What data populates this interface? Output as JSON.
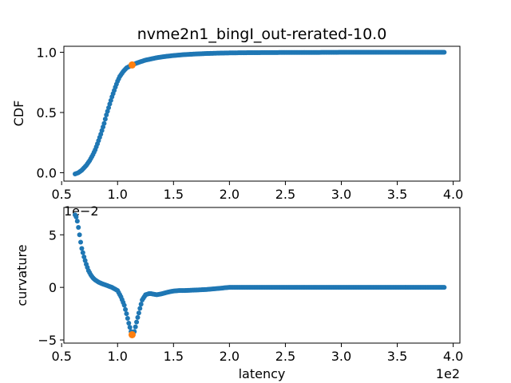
{
  "chart_data": [
    {
      "type": "scatter",
      "title": "nvme2n1_bingI_out-rerated-10.0",
      "xlabel": "",
      "ylabel": "CDF",
      "xlim": [
        0.52,
        4.06
      ],
      "ylim": [
        -0.07,
        1.05
      ],
      "xticks": [
        0.5,
        1.0,
        1.5,
        2.0,
        2.5,
        3.0,
        3.5,
        4.0
      ],
      "xtick_labels": [
        "0.5",
        "1.0",
        "1.5",
        "2.0",
        "2.5",
        "3.0",
        "3.5",
        "4.0"
      ],
      "yticks": [
        0.0,
        0.5,
        1.0
      ],
      "ytick_labels": [
        "0.0",
        "0.5",
        "1.0"
      ],
      "series": [
        {
          "color": "#1f77b4",
          "x": [
            0.62,
            0.65,
            0.68,
            0.7,
            0.72,
            0.75,
            0.78,
            0.8,
            0.82,
            0.85,
            0.88,
            0.9,
            0.92,
            0.95,
            0.98,
            1.0,
            1.02,
            1.05,
            1.08,
            1.1,
            1.13,
            1.17,
            1.2,
            1.25,
            1.3,
            1.35,
            1.4,
            1.45,
            1.5,
            1.55,
            1.6,
            1.7,
            1.8,
            1.9,
            2.0,
            2.1,
            2.2,
            2.4,
            2.6,
            2.8,
            3.0,
            3.2,
            3.4,
            3.6,
            3.8,
            3.92
          ],
          "y": [
            -0.01,
            0.0,
            0.02,
            0.04,
            0.06,
            0.1,
            0.15,
            0.19,
            0.24,
            0.32,
            0.41,
            0.48,
            0.54,
            0.63,
            0.71,
            0.76,
            0.8,
            0.84,
            0.87,
            0.88,
            0.895,
            0.91,
            0.92,
            0.935,
            0.945,
            0.955,
            0.962,
            0.968,
            0.973,
            0.977,
            0.981,
            0.986,
            0.99,
            0.993,
            0.995,
            0.996,
            0.997,
            0.998,
            0.999,
            0.999,
            1.0,
            1.0,
            1.0,
            1.0,
            1.0,
            1.0
          ]
        }
      ],
      "highlight": {
        "color": "#ff7f0e",
        "x": 1.13,
        "y": 0.895
      }
    },
    {
      "type": "scatter",
      "title": "",
      "xlabel": "latency",
      "ylabel": "curvature",
      "x_offset_text": "1e2",
      "y_offset_text": "1e−2",
      "xlim": [
        0.52,
        4.06
      ],
      "ylim": [
        -5.3,
        7.6
      ],
      "xticks": [
        0.5,
        1.0,
        1.5,
        2.0,
        2.5,
        3.0,
        3.5,
        4.0
      ],
      "xtick_labels": [
        "0.5",
        "1.0",
        "1.5",
        "2.0",
        "2.5",
        "3.0",
        "3.5",
        "4.0"
      ],
      "yticks": [
        -5,
        0,
        5
      ],
      "ytick_labels": [
        "−5",
        "0",
        "5"
      ],
      "series": [
        {
          "color": "#1f77b4",
          "x": [
            0.62,
            0.63,
            0.64,
            0.65,
            0.66,
            0.67,
            0.68,
            0.7,
            0.72,
            0.74,
            0.76,
            0.78,
            0.8,
            0.83,
            0.86,
            0.9,
            0.95,
            1.0,
            1.03,
            1.06,
            1.08,
            1.1,
            1.12,
            1.13,
            1.15,
            1.17,
            1.2,
            1.22,
            1.25,
            1.28,
            1.3,
            1.35,
            1.4,
            1.45,
            1.5,
            1.55,
            1.6,
            1.7,
            1.8,
            1.9,
            2.0,
            2.2,
            2.4,
            2.6,
            2.8,
            3.0,
            3.2,
            3.4,
            3.6,
            3.8,
            3.92
          ],
          "y": [
            6.9,
            6.7,
            6.3,
            5.7,
            5.0,
            4.3,
            3.7,
            2.9,
            2.2,
            1.6,
            1.2,
            0.9,
            0.7,
            0.5,
            0.35,
            0.2,
            0.0,
            -0.3,
            -0.9,
            -1.7,
            -2.5,
            -3.4,
            -4.2,
            -4.5,
            -4.2,
            -3.3,
            -2.0,
            -1.2,
            -0.7,
            -0.6,
            -0.6,
            -0.7,
            -0.6,
            -0.45,
            -0.35,
            -0.3,
            -0.3,
            -0.25,
            -0.2,
            -0.1,
            0.0,
            0.0,
            0.0,
            0.0,
            0.0,
            0.0,
            0.0,
            0.0,
            0.0,
            0.0,
            0.0
          ]
        }
      ],
      "highlight": {
        "color": "#ff7f0e",
        "x": 1.13,
        "y": -4.5
      }
    }
  ]
}
